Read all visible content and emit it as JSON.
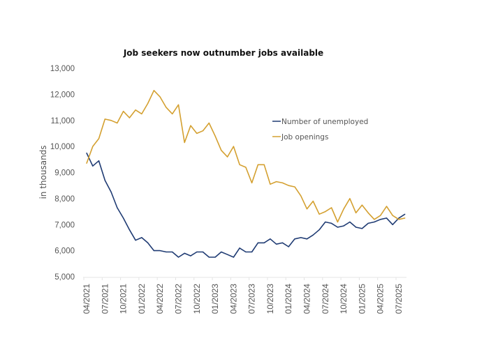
{
  "chart_data": {
    "type": "line",
    "title": "Job seekers now outnumber jobs available",
    "xlabel": "",
    "ylabel": "in thousands",
    "ylim": [
      5000,
      13000
    ],
    "yticks": [
      "13,000",
      "12,000",
      "11,000",
      "10,000",
      "9,000",
      "8,000",
      "7,000",
      "6,000",
      "5,000"
    ],
    "ytick_values": [
      13000,
      12000,
      11000,
      10000,
      9000,
      8000,
      7000,
      6000,
      5000
    ],
    "xtick_labels": [
      "04/2021",
      "07/2021",
      "10/2021",
      "01/2022",
      "04/2022",
      "07/2022",
      "10/2022",
      "01/2023",
      "04/2023",
      "07/2023",
      "10/2023",
      "01/2024",
      "04/2024",
      "07/2024",
      "10/2024",
      "01/2025",
      "04/2025",
      "07/2025"
    ],
    "x_start": "04/2021",
    "x_frequency": "monthly",
    "grid": false,
    "legend_position": "center-right",
    "series": [
      {
        "name": "Number of unemployed",
        "color": "#1f3b73",
        "values": [
          9750,
          9250,
          9450,
          8700,
          8250,
          7650,
          7250,
          6800,
          6400,
          6500,
          6300,
          6000,
          6000,
          5950,
          5950,
          5750,
          5900,
          5800,
          5950,
          5950,
          5750,
          5750,
          5950,
          5850,
          5750,
          6100,
          5950,
          5950,
          6300,
          6300,
          6450,
          6250,
          6300,
          6150,
          6450,
          6500,
          6450,
          6600,
          6800,
          7100,
          7050,
          6900,
          6950,
          7100,
          6900,
          6850,
          7050,
          7100,
          7200,
          7250,
          7000,
          7250,
          7400
        ]
      },
      {
        "name": "Job openings",
        "color": "#d4a030",
        "values": [
          9350,
          10000,
          10300,
          11050,
          11000,
          10900,
          11350,
          11100,
          11400,
          11250,
          11650,
          12150,
          11900,
          11500,
          11250,
          11600,
          10150,
          10800,
          10500,
          10600,
          10900,
          10400,
          9850,
          9600,
          10000,
          9300,
          9200,
          8600,
          9300,
          9300,
          8550,
          8650,
          8600,
          8500,
          8450,
          8100,
          7600,
          7900,
          7400,
          7500,
          7650,
          7100,
          7600,
          8000,
          7450,
          7750,
          7450,
          7200,
          7350,
          7700,
          7350,
          7200,
          7250
        ]
      }
    ]
  }
}
